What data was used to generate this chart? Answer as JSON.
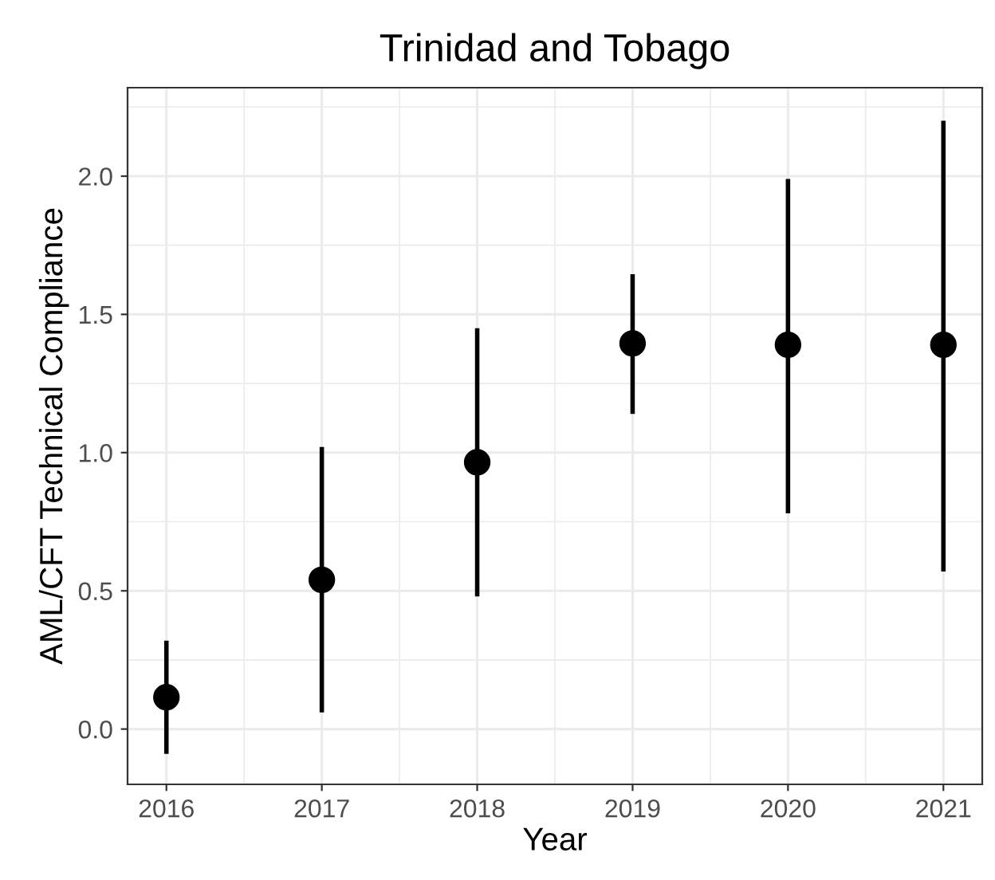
{
  "chart_data": {
    "type": "scatter",
    "title": "Trinidad and Tobago",
    "xlabel": "Year",
    "ylabel": "AML/CFT Technical Compliance",
    "x": [
      2016,
      2017,
      2018,
      2019,
      2020,
      2021
    ],
    "values": [
      0.115,
      0.54,
      0.965,
      1.395,
      1.39,
      1.39
    ],
    "errors": [
      [
        -0.09,
        0.32
      ],
      [
        0.06,
        1.02
      ],
      [
        0.48,
        1.45
      ],
      [
        1.14,
        1.645
      ],
      [
        0.78,
        1.99
      ],
      [
        0.57,
        2.2
      ]
    ],
    "color": "#000000",
    "marker": "circle",
    "xlim": [
      2015.75,
      2021.25
    ],
    "xticks": [
      2016,
      2017,
      2018,
      2019,
      2020,
      2021
    ],
    "ylim": [
      -0.2,
      2.32
    ],
    "yticks": [
      {
        "value": 0,
        "label": "0.0"
      },
      0.5,
      {
        "value": 1,
        "label": "1.0"
      },
      1.5,
      {
        "value": 2,
        "label": "2.0"
      }
    ],
    "grid": true
  }
}
